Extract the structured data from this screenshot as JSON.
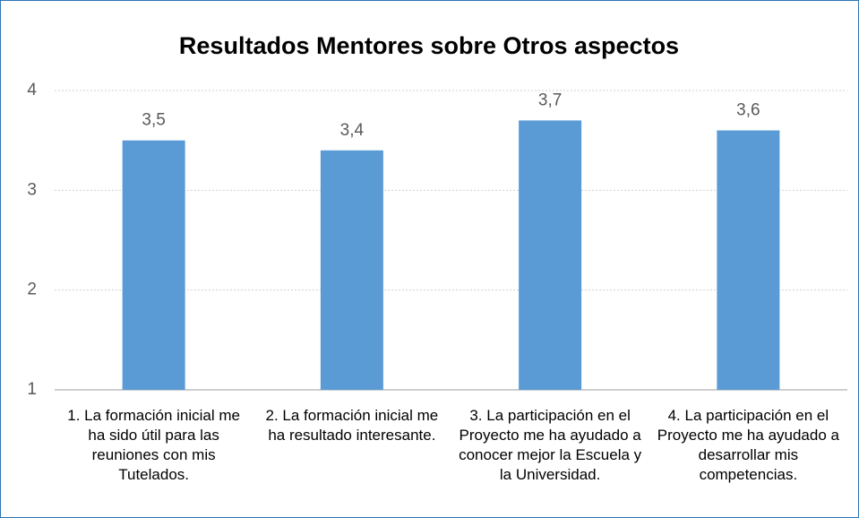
{
  "chart_data": {
    "type": "bar",
    "title": "Resultados Mentores sobre Otros aspectos",
    "categories": [
      "1. La formación inicial me ha sido útil para las reuniones con mis Tutelados.",
      "2. La formación inicial me ha resultado interesante.",
      "3. La participación en el Proyecto me ha ayudado a conocer mejor la Escuela y la Universidad.",
      "4. La participación en el Proyecto me ha ayudado a desarrollar mis competencias."
    ],
    "values": [
      3.5,
      3.4,
      3.7,
      3.6
    ],
    "value_labels": [
      "3,5",
      "3,4",
      "3,7",
      "3,6"
    ],
    "color": "#5b9bd5",
    "ylim": [
      1,
      4
    ],
    "yticks": [
      1,
      2,
      3,
      4
    ],
    "grid": true
  }
}
